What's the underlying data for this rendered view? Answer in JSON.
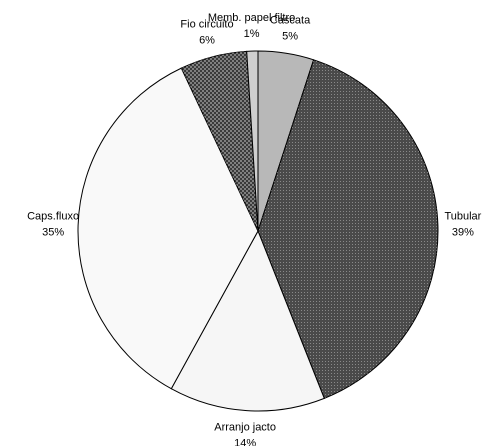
{
  "chart_data": {
    "type": "pie",
    "categories": [
      "Cascata",
      "Tubular",
      "Arranjo jacto",
      "Caps.fluxo",
      "Fio circuito",
      "Memb. papel filtro"
    ],
    "values": [
      5,
      39,
      14,
      35,
      6,
      1
    ],
    "value_labels": [
      "5%",
      "39%",
      "14%",
      "35%",
      "6%",
      "1%"
    ],
    "colors": [
      "#b8b8b8",
      "#4a4a4a",
      "#f6f6f6",
      "#f9f9f9",
      "#3a3a3a",
      "#cfcfcf"
    ]
  }
}
